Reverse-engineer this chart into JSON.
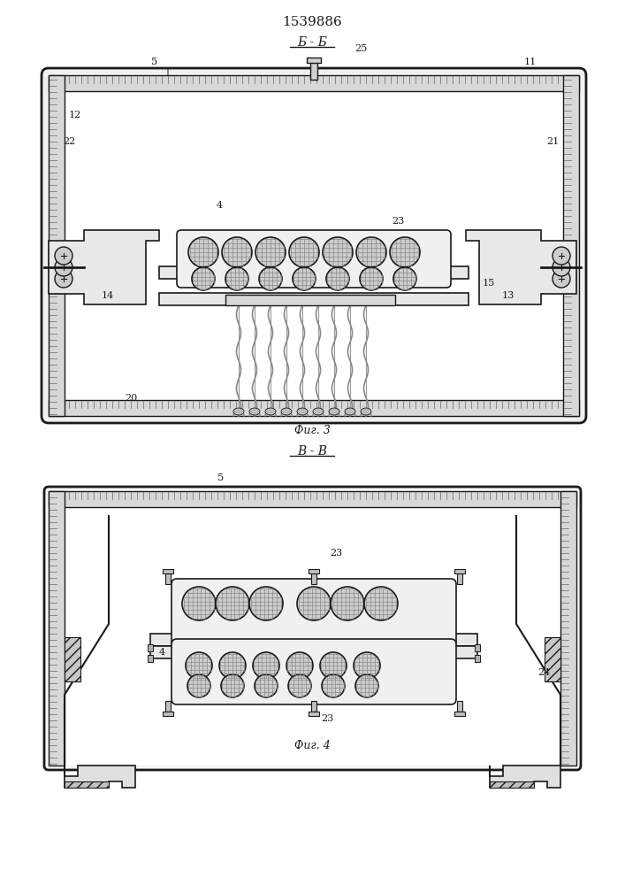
{
  "title": "1539886",
  "fig3_label": "Фиг. 3",
  "fig4_label": "Фиг. 4",
  "section_bb": "Б - Б",
  "section_vv": "В - В",
  "bg_color": "#f5f5f0",
  "line_color": "#1a1a1a",
  "hatch_color": "#1a1a1a",
  "cable_fill": "#d0d0d0",
  "cable_hatch": "xxx"
}
